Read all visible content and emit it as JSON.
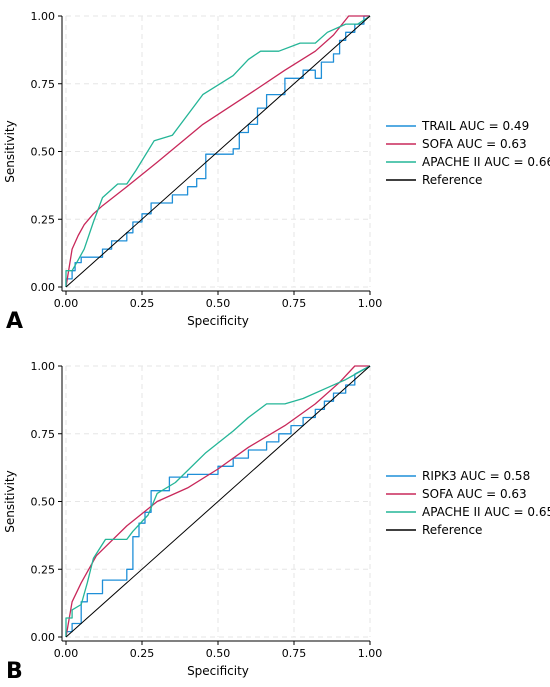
{
  "colors": {
    "biomarker": "#1f8fd8",
    "sofa": "#c8285a",
    "apache": "#24b597",
    "reference": "#000000"
  },
  "chart_data": [
    {
      "type": "line",
      "panel_label": "A",
      "xlabel": "Specificity",
      "ylabel": "Sensitivity",
      "xlim": [
        0,
        1
      ],
      "ylim": [
        0,
        1
      ],
      "ticks": [
        "0.00",
        "0.25",
        "0.50",
        "0.75",
        "1.00"
      ],
      "grid": true,
      "legend_position": "right",
      "series": [
        {
          "name": "TRAIL AUC = 0.49",
          "color_key": "biomarker",
          "step": true,
          "x": [
            0,
            0,
            0.02,
            0.02,
            0.03,
            0.03,
            0.05,
            0.05,
            0.06,
            0.12,
            0.12,
            0.15,
            0.15,
            0.2,
            0.2,
            0.22,
            0.22,
            0.25,
            0.25,
            0.28,
            0.28,
            0.35,
            0.35,
            0.4,
            0.4,
            0.43,
            0.43,
            0.46,
            0.46,
            0.55,
            0.55,
            0.57,
            0.57,
            0.6,
            0.6,
            0.63,
            0.63,
            0.66,
            0.66,
            0.72,
            0.72,
            0.78,
            0.78,
            0.82,
            0.82,
            0.84,
            0.84,
            0.88,
            0.88,
            0.9,
            0.9,
            0.92,
            0.92,
            0.95,
            0.95,
            0.98,
            0.98,
            1
          ],
          "y": [
            0,
            0.03,
            0.03,
            0.06,
            0.06,
            0.09,
            0.09,
            0.11,
            0.11,
            0.11,
            0.14,
            0.14,
            0.17,
            0.17,
            0.2,
            0.2,
            0.24,
            0.24,
            0.27,
            0.27,
            0.31,
            0.31,
            0.34,
            0.34,
            0.37,
            0.37,
            0.4,
            0.4,
            0.49,
            0.49,
            0.51,
            0.51,
            0.57,
            0.57,
            0.6,
            0.6,
            0.66,
            0.66,
            0.71,
            0.71,
            0.77,
            0.77,
            0.8,
            0.8,
            0.77,
            0.77,
            0.83,
            0.83,
            0.86,
            0.86,
            0.91,
            0.91,
            0.94,
            0.94,
            0.97,
            0.97,
            1,
            1
          ]
        },
        {
          "name": "SOFA AUC = 0.63",
          "color_key": "sofa",
          "x": [
            0,
            0.02,
            0.04,
            0.06,
            0.09,
            0.12,
            0.2,
            0.3,
            0.45,
            0.6,
            0.72,
            0.82,
            0.88,
            0.93,
            1
          ],
          "y": [
            0,
            0.14,
            0.19,
            0.23,
            0.27,
            0.3,
            0.37,
            0.46,
            0.6,
            0.71,
            0.8,
            0.87,
            0.93,
            1,
            1
          ]
        },
        {
          "name": "APACHE II AUC = 0.66",
          "color_key": "apache",
          "x": [
            0,
            0,
            0.02,
            0.04,
            0.04,
            0.06,
            0.09,
            0.12,
            0.17,
            0.2,
            0.23,
            0.29,
            0.35,
            0.45,
            0.55,
            0.6,
            0.64,
            0.7,
            0.77,
            0.82,
            0.86,
            0.92,
            0.96,
            1
          ],
          "y": [
            0,
            0.06,
            0.06,
            0.1,
            0.1,
            0.14,
            0.24,
            0.33,
            0.38,
            0.38,
            0.43,
            0.54,
            0.56,
            0.71,
            0.78,
            0.84,
            0.87,
            0.87,
            0.9,
            0.9,
            0.94,
            0.97,
            0.97,
            1
          ]
        },
        {
          "name": "Reference",
          "color_key": "reference",
          "x": [
            0,
            1
          ],
          "y": [
            0,
            1
          ]
        }
      ]
    },
    {
      "type": "line",
      "panel_label": "B",
      "xlabel": "Specificity",
      "ylabel": "Sensitivity",
      "xlim": [
        0,
        1
      ],
      "ylim": [
        0,
        1
      ],
      "ticks": [
        "0.00",
        "0.25",
        "0.50",
        "0.75",
        "1.00"
      ],
      "grid": true,
      "legend_position": "right",
      "series": [
        {
          "name": "RIPK3 AUC = 0.58",
          "color_key": "biomarker",
          "step": true,
          "x": [
            0,
            0,
            0.02,
            0.02,
            0.05,
            0.05,
            0.07,
            0.07,
            0.12,
            0.12,
            0.2,
            0.2,
            0.22,
            0.22,
            0.24,
            0.24,
            0.26,
            0.26,
            0.28,
            0.28,
            0.34,
            0.34,
            0.4,
            0.4,
            0.5,
            0.5,
            0.55,
            0.55,
            0.6,
            0.6,
            0.66,
            0.66,
            0.7,
            0.7,
            0.74,
            0.74,
            0.78,
            0.78,
            0.82,
            0.82,
            0.85,
            0.85,
            0.88,
            0.88,
            0.92,
            0.92,
            0.95,
            0.95,
            1
          ],
          "y": [
            0,
            0.02,
            0.02,
            0.05,
            0.05,
            0.13,
            0.13,
            0.16,
            0.16,
            0.21,
            0.21,
            0.25,
            0.25,
            0.37,
            0.37,
            0.42,
            0.42,
            0.46,
            0.46,
            0.54,
            0.54,
            0.59,
            0.59,
            0.6,
            0.6,
            0.63,
            0.63,
            0.66,
            0.66,
            0.69,
            0.69,
            0.72,
            0.72,
            0.75,
            0.75,
            0.78,
            0.78,
            0.81,
            0.81,
            0.84,
            0.84,
            0.87,
            0.87,
            0.9,
            0.9,
            0.93,
            0.93,
            0.97,
            1
          ]
        },
        {
          "name": "SOFA AUC = 0.63",
          "color_key": "sofa",
          "x": [
            0,
            0.02,
            0.05,
            0.1,
            0.2,
            0.3,
            0.4,
            0.5,
            0.6,
            0.72,
            0.82,
            0.9,
            0.95,
            1
          ],
          "y": [
            0,
            0.13,
            0.2,
            0.3,
            0.41,
            0.5,
            0.55,
            0.62,
            0.7,
            0.78,
            0.86,
            0.94,
            1,
            1
          ]
        },
        {
          "name": "APACHE II AUC = 0.65",
          "color_key": "apache",
          "x": [
            0,
            0,
            0.02,
            0.02,
            0.05,
            0.07,
            0.09,
            0.13,
            0.2,
            0.22,
            0.27,
            0.3,
            0.36,
            0.46,
            0.55,
            0.6,
            0.66,
            0.72,
            0.78,
            0.86,
            0.92,
            1
          ],
          "y": [
            0,
            0.07,
            0.07,
            0.1,
            0.12,
            0.2,
            0.29,
            0.36,
            0.36,
            0.39,
            0.45,
            0.53,
            0.57,
            0.68,
            0.76,
            0.81,
            0.86,
            0.86,
            0.88,
            0.92,
            0.95,
            1
          ]
        },
        {
          "name": "Reference",
          "color_key": "reference",
          "x": [
            0,
            1
          ],
          "y": [
            0,
            1
          ]
        }
      ]
    }
  ]
}
